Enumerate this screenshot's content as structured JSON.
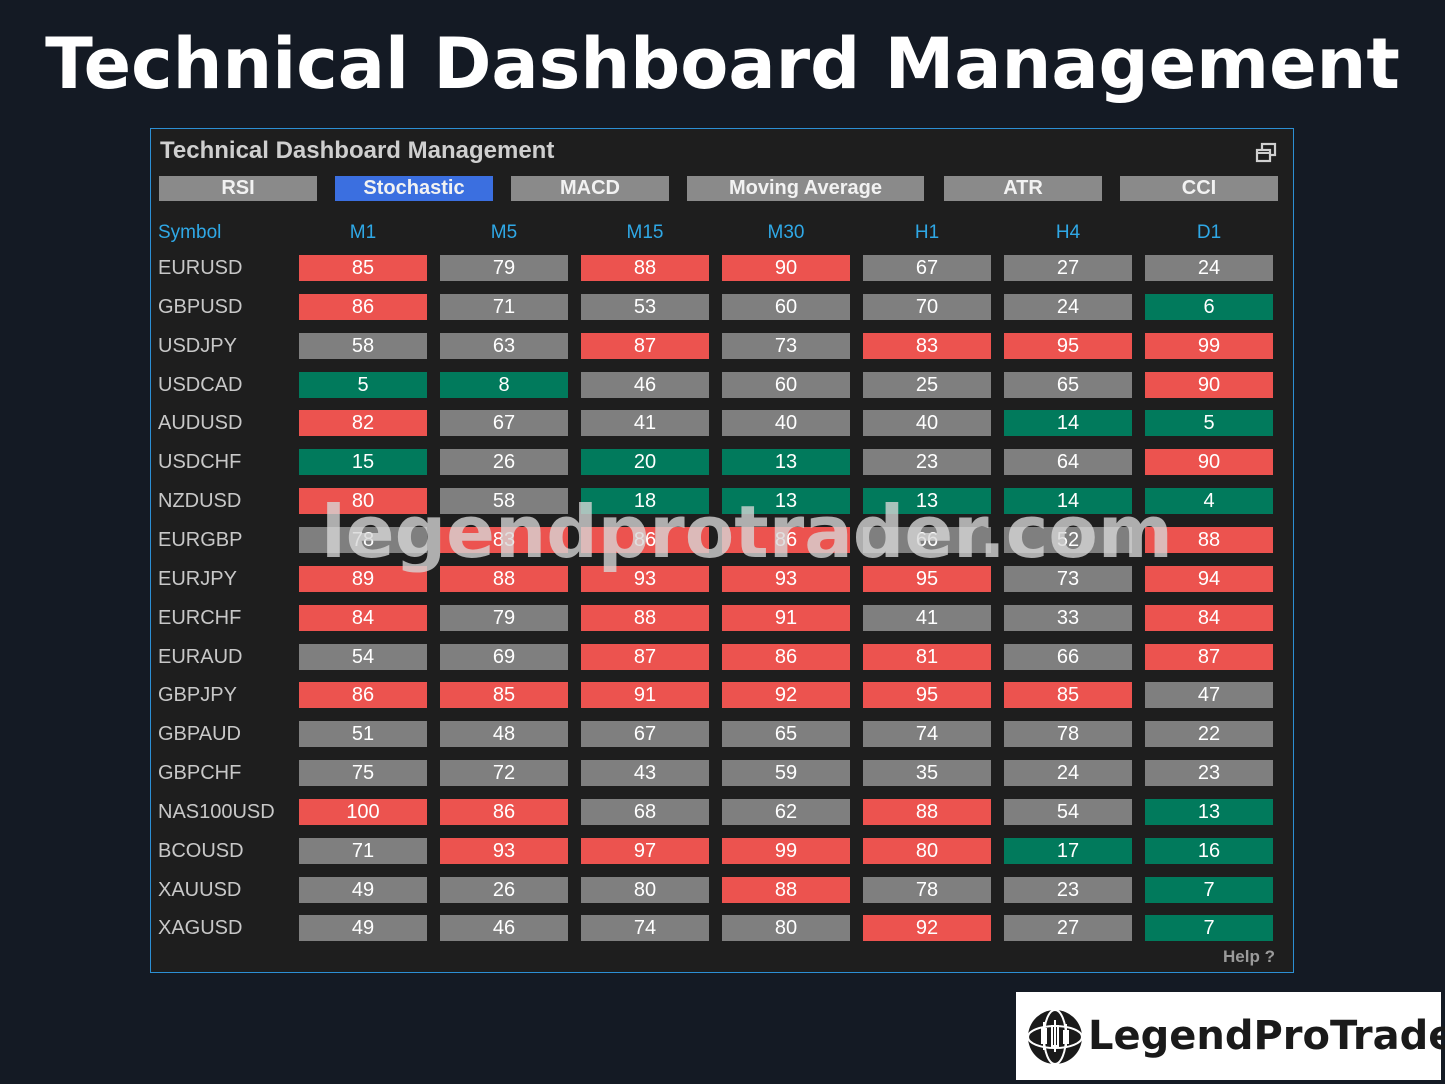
{
  "headline": "Technical Dashboard Management",
  "panel": {
    "title": "Technical Dashboard Management",
    "tabs": [
      {
        "label": "RSI",
        "active": false
      },
      {
        "label": "Stochastic",
        "active": true
      },
      {
        "label": "MACD",
        "active": false
      },
      {
        "label": "Moving Average",
        "active": false
      },
      {
        "label": "ATR",
        "active": false
      },
      {
        "label": "CCI",
        "active": false
      }
    ],
    "symbol_header": "Symbol",
    "timeframes": [
      "M1",
      "M5",
      "M15",
      "M30",
      "H1",
      "H4",
      "D1"
    ],
    "rows": [
      {
        "symbol": "EURUSD",
        "values": [
          85,
          79,
          88,
          90,
          67,
          27,
          24
        ],
        "states": [
          "red",
          "gray",
          "red",
          "red",
          "gray",
          "gray",
          "gray"
        ]
      },
      {
        "symbol": "GBPUSD",
        "values": [
          86,
          71,
          53,
          60,
          70,
          24,
          6
        ],
        "states": [
          "red",
          "gray",
          "gray",
          "gray",
          "gray",
          "gray",
          "green"
        ]
      },
      {
        "symbol": "USDJPY",
        "values": [
          58,
          63,
          87,
          73,
          83,
          95,
          99
        ],
        "states": [
          "gray",
          "gray",
          "red",
          "gray",
          "red",
          "red",
          "red"
        ]
      },
      {
        "symbol": "USDCAD",
        "values": [
          5,
          8,
          46,
          60,
          25,
          65,
          90
        ],
        "states": [
          "green",
          "green",
          "gray",
          "gray",
          "gray",
          "gray",
          "red"
        ]
      },
      {
        "symbol": "AUDUSD",
        "values": [
          82,
          67,
          41,
          40,
          40,
          14,
          5
        ],
        "states": [
          "red",
          "gray",
          "gray",
          "gray",
          "gray",
          "green",
          "green"
        ]
      },
      {
        "symbol": "USDCHF",
        "values": [
          15,
          26,
          20,
          13,
          23,
          64,
          90
        ],
        "states": [
          "green",
          "gray",
          "green",
          "green",
          "gray",
          "gray",
          "red"
        ]
      },
      {
        "symbol": "NZDUSD",
        "values": [
          80,
          58,
          18,
          13,
          13,
          14,
          4
        ],
        "states": [
          "red",
          "gray",
          "green",
          "green",
          "green",
          "green",
          "green"
        ]
      },
      {
        "symbol": "EURGBP",
        "values": [
          78,
          83,
          86,
          86,
          66,
          52,
          88
        ],
        "states": [
          "gray",
          "red",
          "red",
          "red",
          "gray",
          "gray",
          "red"
        ]
      },
      {
        "symbol": "EURJPY",
        "values": [
          89,
          88,
          93,
          93,
          95,
          73,
          94
        ],
        "states": [
          "red",
          "red",
          "red",
          "red",
          "red",
          "gray",
          "red"
        ]
      },
      {
        "symbol": "EURCHF",
        "values": [
          84,
          79,
          88,
          91,
          41,
          33,
          84
        ],
        "states": [
          "red",
          "gray",
          "red",
          "red",
          "gray",
          "gray",
          "red"
        ]
      },
      {
        "symbol": "EURAUD",
        "values": [
          54,
          69,
          87,
          86,
          81,
          66,
          87
        ],
        "states": [
          "gray",
          "gray",
          "red",
          "red",
          "red",
          "gray",
          "red"
        ]
      },
      {
        "symbol": "GBPJPY",
        "values": [
          86,
          85,
          91,
          92,
          95,
          85,
          47
        ],
        "states": [
          "red",
          "red",
          "red",
          "red",
          "red",
          "red",
          "gray"
        ]
      },
      {
        "symbol": "GBPAUD",
        "values": [
          51,
          48,
          67,
          65,
          74,
          78,
          22
        ],
        "states": [
          "gray",
          "gray",
          "gray",
          "gray",
          "gray",
          "gray",
          "gray"
        ]
      },
      {
        "symbol": "GBPCHF",
        "values": [
          75,
          72,
          43,
          59,
          35,
          24,
          23
        ],
        "states": [
          "gray",
          "gray",
          "gray",
          "gray",
          "gray",
          "gray",
          "gray"
        ]
      },
      {
        "symbol": "NAS100USD",
        "values": [
          100,
          86,
          68,
          62,
          88,
          54,
          13
        ],
        "states": [
          "red",
          "red",
          "gray",
          "gray",
          "red",
          "gray",
          "green"
        ]
      },
      {
        "symbol": "BCOUSD",
        "values": [
          71,
          93,
          97,
          99,
          80,
          17,
          16
        ],
        "states": [
          "gray",
          "red",
          "red",
          "red",
          "red",
          "green",
          "green"
        ]
      },
      {
        "symbol": "XAUUSD",
        "values": [
          49,
          26,
          80,
          88,
          78,
          23,
          7
        ],
        "states": [
          "gray",
          "gray",
          "gray",
          "red",
          "gray",
          "gray",
          "green"
        ]
      },
      {
        "symbol": "XAGUSD",
        "values": [
          49,
          46,
          74,
          80,
          92,
          27,
          7
        ],
        "states": [
          "gray",
          "gray",
          "gray",
          "gray",
          "red",
          "gray",
          "green"
        ]
      }
    ],
    "help_label": "Help",
    "help_icon": "question-mark-icon"
  },
  "watermark": "legendprotrader.com",
  "logo": {
    "text": "LegendProTrader",
    "icon": "candlestick-globe-icon"
  },
  "colors": {
    "overbought": "#ec534f",
    "oversold": "#017a5c",
    "neutral": "#7f7f7f",
    "active_tab": "#3b6fe0",
    "header": "#2fa8e6"
  }
}
